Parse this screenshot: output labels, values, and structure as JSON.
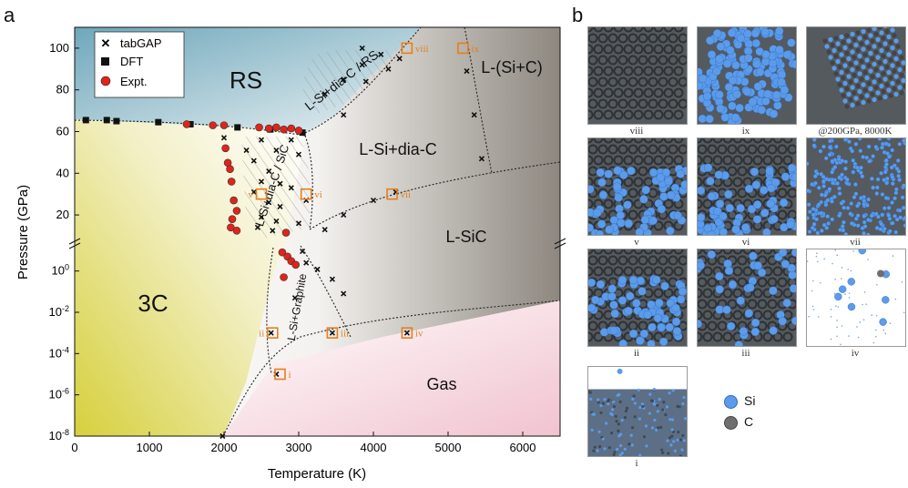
{
  "panel_a_label": "a",
  "panel_b_label": "b",
  "chart_data": {
    "type": "scatter",
    "title": "",
    "xlabel": "Temperature (K)",
    "ylabel": "Pressure (GPa)",
    "xlim": [
      0,
      6500
    ],
    "x_ticks": [
      0,
      1000,
      2000,
      3000,
      4000,
      5000,
      6000
    ],
    "upper_ylim": [
      10,
      110
    ],
    "upper_yticks": [
      20,
      40,
      60,
      80,
      100
    ],
    "lower_ylog_range": [
      -8,
      1
    ],
    "lower_yticks": [
      "10-8",
      "10-6",
      "10-4",
      "10-2",
      "100"
    ],
    "regions": [
      "RS",
      "L-Si+dia-C / RS",
      "L-(Si+C)",
      "L-Si+dia-C",
      "L-Si+dia-C / SiC",
      "L-SiC",
      "3C",
      "L-Si+Graphite",
      "Gas"
    ],
    "legend": [
      "tabGAP",
      "DFT",
      "Expt."
    ],
    "series": [
      {
        "name": "DFT",
        "points": [
          [
            150,
            65.5
          ],
          [
            430,
            65.5
          ],
          [
            560,
            65.0
          ],
          [
            1120,
            64.5
          ],
          [
            1550,
            63.5
          ],
          [
            2180,
            62.0
          ],
          [
            2620,
            61.0
          ],
          [
            3050,
            59.5
          ]
        ]
      },
      {
        "name": "Expt.",
        "points": [
          [
            1500,
            63.5
          ],
          [
            1850,
            63.0
          ],
          [
            2000,
            63.0
          ],
          [
            2470,
            62.0
          ],
          [
            2600,
            61.5
          ],
          [
            2700,
            62.0
          ],
          [
            2800,
            61.0
          ],
          [
            2900,
            61.5
          ],
          [
            3000,
            60.5
          ],
          [
            2020,
            52
          ],
          [
            2050,
            45
          ],
          [
            2080,
            42
          ],
          [
            2100,
            36
          ],
          [
            2130,
            27
          ],
          [
            2170,
            22
          ],
          [
            2110,
            18
          ],
          [
            2090,
            14
          ],
          [
            2170,
            12.5
          ],
          [
            2830,
            11.5
          ],
          [
            2780,
            8
          ],
          [
            2850,
            5
          ],
          [
            2900,
            3
          ],
          [
            2960,
            2
          ],
          [
            2800,
            0.5
          ]
        ]
      },
      {
        "name": "tabGAP",
        "points": [
          [
            2000,
            57
          ],
          [
            2500,
            56
          ],
          [
            2900,
            56
          ],
          [
            2300,
            51
          ],
          [
            2700,
            51
          ],
          [
            3000,
            49
          ],
          [
            2400,
            46
          ],
          [
            2600,
            41
          ],
          [
            2500,
            36
          ],
          [
            2750,
            35
          ],
          [
            2900,
            33
          ],
          [
            2400,
            31
          ],
          [
            2600,
            26
          ],
          [
            2750,
            24
          ],
          [
            3100,
            27
          ],
          [
            2500,
            19
          ],
          [
            2700,
            17
          ],
          [
            3000,
            16
          ],
          [
            2450,
            14
          ],
          [
            2650,
            12.5
          ],
          [
            3050,
            9
          ],
          [
            3350,
            13
          ],
          [
            3600,
            20
          ],
          [
            4000,
            27
          ],
          [
            4300,
            31
          ],
          [
            3350,
            78
          ],
          [
            3600,
            85
          ],
          [
            3850,
            92
          ],
          [
            3600,
            68
          ],
          [
            3900,
            84
          ],
          [
            4200,
            90
          ],
          [
            3850,
            100
          ],
          [
            4100,
            97
          ],
          [
            4350,
            95
          ],
          [
            5250,
            89
          ],
          [
            5350,
            68
          ],
          [
            5450,
            47
          ],
          [
            3100,
            2.5
          ],
          [
            3250,
            1.2
          ],
          [
            3450,
            0.4
          ],
          [
            3600,
            0.08
          ],
          [
            2950,
            0.05
          ],
          [
            3450,
            0.001
          ],
          [
            4450,
            0.001
          ],
          [
            2630,
            0.001
          ],
          [
            2700,
            1e-05
          ],
          [
            1980,
            1e-08
          ]
        ]
      }
    ],
    "snapshots_on_plot": [
      {
        "label": "i",
        "T": 2750,
        "P": 1e-05
      },
      {
        "label": "ii",
        "T": 2650,
        "P": 0.001
      },
      {
        "label": "iii",
        "T": 3450,
        "P": 0.001
      },
      {
        "label": "iv",
        "T": 4450,
        "P": 0.001
      },
      {
        "label": "v",
        "T": 2500,
        "P": 30
      },
      {
        "label": "vi",
        "T": 3100,
        "P": 30
      },
      {
        "label": "vii",
        "T": 4250,
        "P": 30
      },
      {
        "label": "viii",
        "T": 4450,
        "P": 100
      },
      {
        "label": "ix",
        "T": 5200,
        "P": 100
      }
    ]
  },
  "snapshots": [
    {
      "caption": "viii",
      "kind": "lattice"
    },
    {
      "caption": "ix",
      "kind": "blue"
    },
    {
      "caption": "@200GPa, 8000K",
      "kind": "rs"
    },
    {
      "caption": "v",
      "kind": "mixed"
    },
    {
      "caption": "vi",
      "kind": "mixed"
    },
    {
      "caption": "vii",
      "kind": "fine"
    },
    {
      "caption": "ii",
      "kind": "mixed"
    },
    {
      "caption": "iii",
      "kind": "dark"
    },
    {
      "caption": "iv",
      "kind": "gas"
    },
    {
      "caption": "i",
      "kind": "slab"
    }
  ],
  "atom_legend": [
    {
      "label": "Si",
      "color": "#5b9bea"
    },
    {
      "label": "C",
      "color": "#6e6e6e"
    }
  ],
  "colors": {
    "orange": "#e3801f",
    "expt": "#e0241b",
    "rs": "#7fb3c4",
    "threeC": "#dcd64f",
    "gas": "#f0c8d2"
  }
}
